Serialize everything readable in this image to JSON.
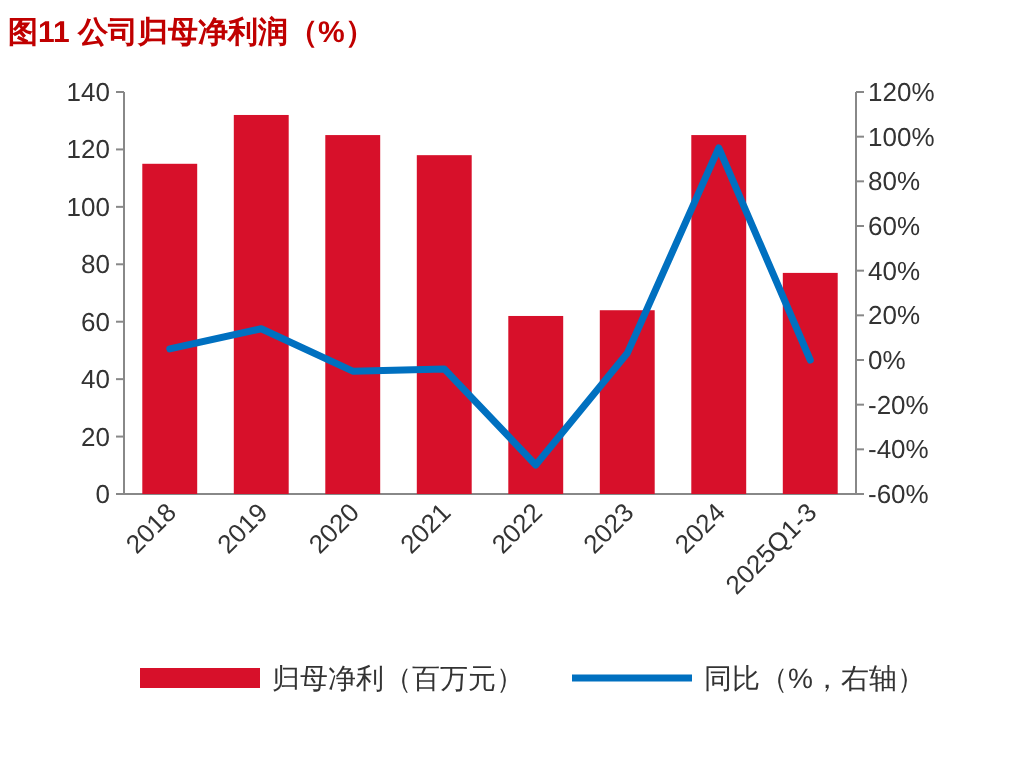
{
  "chart_data": {
    "type": "bar",
    "title": "图11  公司归母净利润（%）",
    "categories": [
      "2018",
      "2019",
      "2020",
      "2021",
      "2022",
      "2023",
      "2024",
      "2025Q1-3"
    ],
    "series": [
      {
        "name": "归母净利（百万元）",
        "color": "#d7102a",
        "values": [
          115,
          132,
          125,
          118,
          62,
          64,
          125,
          77
        ]
      },
      {
        "name": "同比（%，右轴）",
        "type": "line",
        "axis": "y2",
        "color": "#0070c0",
        "values": [
          5,
          14,
          -5,
          -4,
          -47,
          3,
          95,
          0
        ]
      }
    ],
    "ylim": [
      0,
      140
    ],
    "yticks": [
      0,
      20,
      40,
      60,
      80,
      100,
      120,
      140
    ],
    "y2lim": [
      -60,
      120
    ],
    "y2ticks": [
      {
        "value": -60,
        "label": "-60%"
      },
      {
        "value": -40,
        "label": "-40%"
      },
      {
        "value": -20,
        "label": "-20%"
      },
      {
        "value": 0,
        "label": "0%"
      },
      {
        "value": 20,
        "label": "20%"
      },
      {
        "value": 40,
        "label": "40%"
      },
      {
        "value": 60,
        "label": "60%"
      },
      {
        "value": 80,
        "label": "80%"
      },
      {
        "value": 100,
        "label": "100%"
      },
      {
        "value": 120,
        "label": "120%"
      }
    ],
    "legend": "bottom",
    "grid": false,
    "marker": "none",
    "line_style": "solid"
  }
}
